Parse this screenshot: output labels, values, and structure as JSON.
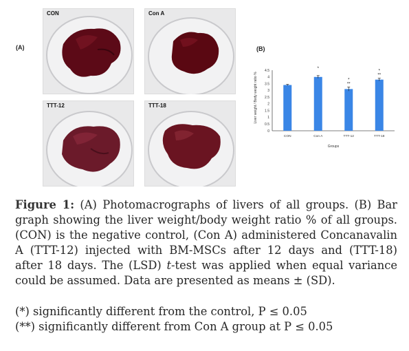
{
  "panel_a": {
    "label": "(A)",
    "photos": [
      {
        "label": "CON"
      },
      {
        "label": "Con A"
      },
      {
        "label": "TTT-12"
      },
      {
        "label": "TTT-18"
      }
    ]
  },
  "panel_b": {
    "label": "(B)"
  },
  "chart_data": {
    "type": "bar",
    "categories": [
      "CON",
      "Con A",
      "TTT-12",
      "TTT-18"
    ],
    "values": [
      3.4,
      4.0,
      3.1,
      3.8
    ],
    "error_bars": [
      0.05,
      0.1,
      0.15,
      0.1
    ],
    "significance": [
      "",
      "*",
      "*\n**",
      "*\n**"
    ],
    "xlabel": "Groups",
    "ylabel": "Liver weight / Body weight ratio %",
    "ylim": [
      0,
      4.5
    ],
    "yticks": [
      "0",
      "0.5",
      "1",
      "1.5",
      "2",
      "2.5",
      "3",
      "3.5",
      "4",
      "4.5"
    ],
    "bar_color": "#3a86e6",
    "grid": false
  },
  "caption": {
    "fig_label": "Figure 1:",
    "text": "(A) Photomacrographs of livers of all groups. (B) Bar graph showing the liver weight/body weight ratio % of all groups. (CON) is the negative control, (Con A) administered Concanavalin A (TTT-12) injected with BM-MSCs after 12 days and (TTT-18) after 18 days. The (LSD) ",
    "t_italic": "t",
    "text_end": "-test was applied when equal variance could be assumed. Data are presented as means ± (SD).",
    "note1": "(*) significantly different from the control, P ≤ 0.05",
    "note2": "(**) significantly different from Con A group at P ≤ 0.05"
  }
}
